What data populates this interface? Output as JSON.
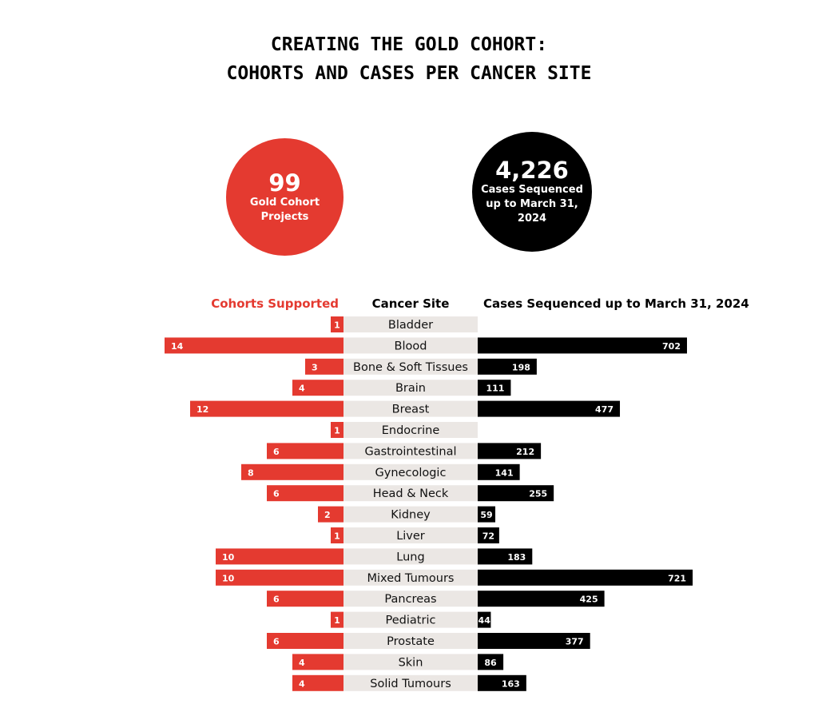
{
  "title": {
    "line1": "CREATING THE GOLD COHORT:",
    "line2": "COHORTS AND CASES PER CANCER SITE"
  },
  "stats": {
    "projects": {
      "value": "99",
      "label_line1": "Gold Cohort",
      "label_line2": "Projects",
      "color": "#e43a30"
    },
    "cases": {
      "value": "4,226",
      "label_line1": "Cases Sequenced",
      "label_line2": "up to March 31,",
      "label_line3": "2024",
      "color": "#000000"
    }
  },
  "chart_data": {
    "type": "bar",
    "layout": "butterfly",
    "headers": {
      "left": "Cohorts Supported",
      "center": "Cancer Site",
      "right": "Cases Sequenced up to March 31, 2024"
    },
    "categories": [
      "Bladder",
      "Blood",
      "Bone & Soft Tissues",
      "Brain",
      "Breast",
      "Endocrine",
      "Gastrointestinal",
      "Gynecologic",
      "Head & Neck",
      "Kidney",
      "Liver",
      "Lung",
      "Mixed Tumours",
      "Pancreas",
      "Pediatric",
      "Prostate",
      "Skin",
      "Solid Tumours"
    ],
    "series": [
      {
        "name": "Cohorts Supported",
        "color": "#e43a30",
        "values": [
          1,
          14,
          3,
          4,
          12,
          1,
          6,
          8,
          6,
          2,
          1,
          10,
          10,
          6,
          1,
          6,
          4,
          4
        ]
      },
      {
        "name": "Cases Sequenced up to March 31, 2024",
        "color": "#000000",
        "values": [
          null,
          702,
          198,
          111,
          477,
          null,
          212,
          141,
          255,
          59,
          72,
          183,
          721,
          425,
          44,
          377,
          86,
          163
        ]
      }
    ],
    "category_band_color": "#ebe7e4"
  }
}
